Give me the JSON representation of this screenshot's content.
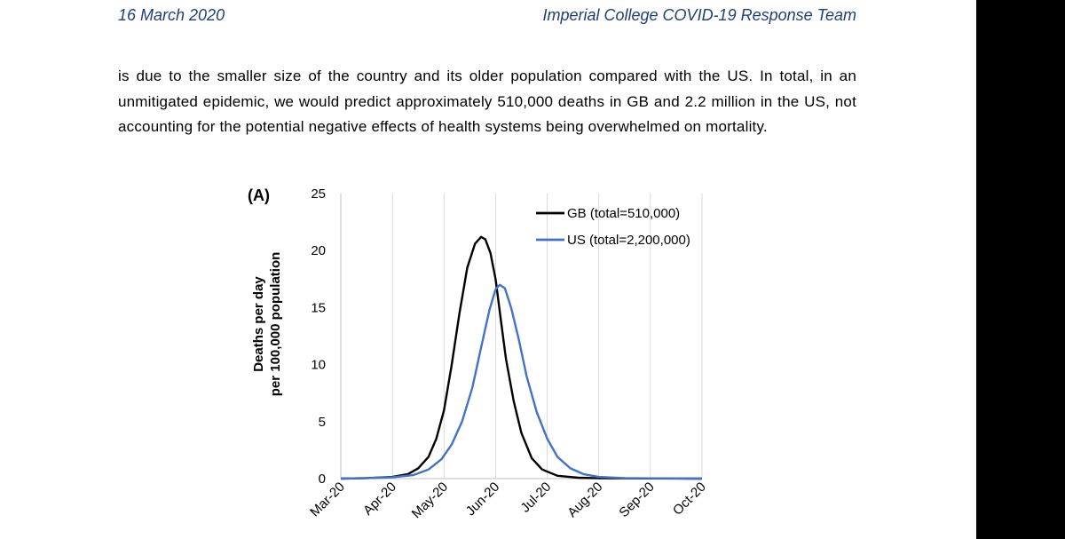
{
  "header": {
    "date": "16 March 2020",
    "team": "Imperial College COVID-19 Response Team"
  },
  "body_text": "is due to the smaller size of the country and its older population compared with the US. In total, in an unmitigated epidemic, we would predict approximately 510,000 deaths in GB and 2.2 million in the US, not accounting for the potential negative effects of health systems being overwhelmed on mortality.",
  "figure": {
    "panel_label": "(A)",
    "ylabel_line1": "Deaths per day",
    "ylabel_line2": "per 100,000 population"
  },
  "chart_data": {
    "type": "line",
    "ylabel": "Deaths per day per 100,000 population",
    "ylim": [
      0,
      25
    ],
    "yticks": [
      0,
      5,
      10,
      15,
      20,
      25
    ],
    "x_tick_labels": [
      "Mar-20",
      "Apr-20",
      "May-20",
      "Jun-20",
      "Jul-20",
      "Aug-20",
      "Sep-20",
      "Oct-20"
    ],
    "xlim_months": [
      0,
      7
    ],
    "grid": "vertical",
    "legend_position": "top-right",
    "series": [
      {
        "name": "GB (total=510,000)",
        "color": "#000000",
        "points": [
          [
            0,
            0
          ],
          [
            0.5,
            0.05
          ],
          [
            1.0,
            0.15
          ],
          [
            1.3,
            0.4
          ],
          [
            1.5,
            0.9
          ],
          [
            1.7,
            1.9
          ],
          [
            1.85,
            3.5
          ],
          [
            2.0,
            6.0
          ],
          [
            2.15,
            10.0
          ],
          [
            2.3,
            14.5
          ],
          [
            2.45,
            18.5
          ],
          [
            2.6,
            20.6
          ],
          [
            2.72,
            21.2
          ],
          [
            2.8,
            21.0
          ],
          [
            2.9,
            19.8
          ],
          [
            3.0,
            17.5
          ],
          [
            3.1,
            14.0
          ],
          [
            3.2,
            10.5
          ],
          [
            3.35,
            6.8
          ],
          [
            3.5,
            4.0
          ],
          [
            3.7,
            1.8
          ],
          [
            3.9,
            0.8
          ],
          [
            4.2,
            0.25
          ],
          [
            4.6,
            0.08
          ],
          [
            5.0,
            0.03
          ],
          [
            7.0,
            0
          ]
        ]
      },
      {
        "name": "US (total=2,200,000)",
        "color": "#4472c4",
        "points": [
          [
            0,
            0
          ],
          [
            0.5,
            0.05
          ],
          [
            1.0,
            0.12
          ],
          [
            1.4,
            0.3
          ],
          [
            1.7,
            0.8
          ],
          [
            1.95,
            1.7
          ],
          [
            2.15,
            3.0
          ],
          [
            2.35,
            5.0
          ],
          [
            2.55,
            8.0
          ],
          [
            2.72,
            11.5
          ],
          [
            2.88,
            14.8
          ],
          [
            3.0,
            16.6
          ],
          [
            3.08,
            17.0
          ],
          [
            3.18,
            16.7
          ],
          [
            3.3,
            15.0
          ],
          [
            3.45,
            12.2
          ],
          [
            3.6,
            9.0
          ],
          [
            3.8,
            5.8
          ],
          [
            4.0,
            3.5
          ],
          [
            4.2,
            1.9
          ],
          [
            4.45,
            0.9
          ],
          [
            4.7,
            0.4
          ],
          [
            5.0,
            0.15
          ],
          [
            5.5,
            0.05
          ],
          [
            6.0,
            0.02
          ],
          [
            7.0,
            0
          ]
        ]
      }
    ]
  }
}
